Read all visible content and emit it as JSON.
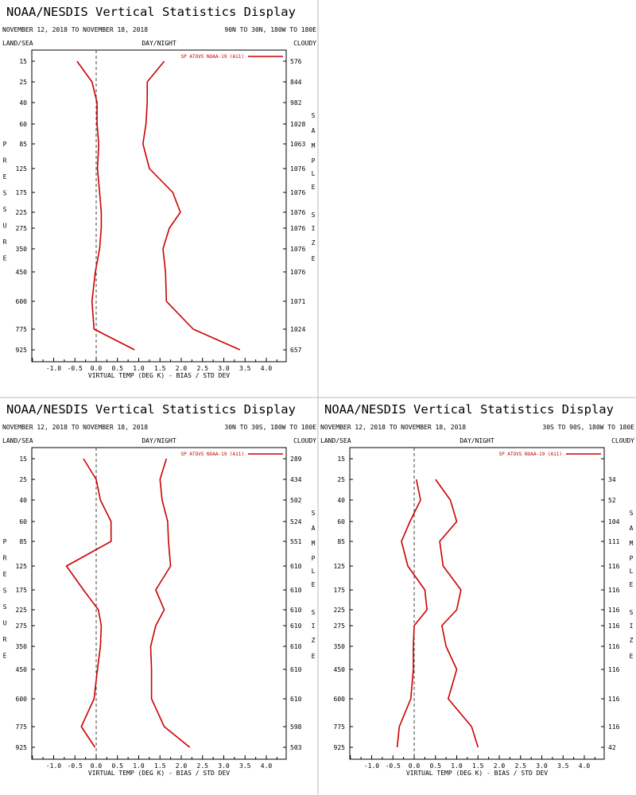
{
  "chart_data": [
    {
      "type": "line",
      "title": "NOAA/NESDIS Vertical Statistics Display",
      "date_range": "NOVEMBER 12, 2018 TO NOVEMBER 18, 2018",
      "region": "90N TO 30N, 180W TO 180E",
      "header_left": "LAND/SEA",
      "header_center": "DAY/NIGHT",
      "header_right": "CLOUDY",
      "xlabel": "VIRTUAL TEMP (DEG K) - BIAS / STD DEV",
      "ylabel": "PRESSURE",
      "right_label": "SAMPLE SIZE",
      "legend": "SP ATOVS NOAA-19 (A11)",
      "xlim": [
        -1.5,
        4.5
      ],
      "x_ticks": [
        "-1.0",
        "-0.5",
        "0.0",
        "0.5",
        "1.0",
        "1.5",
        "2.0",
        "2.5",
        "3.0",
        "3.5",
        "4.0"
      ],
      "pressure_levels": [
        "15",
        "25",
        "40",
        "60",
        "85",
        "125",
        "175",
        "225",
        "275",
        "350",
        "450",
        "600",
        "775",
        "925"
      ],
      "sample_size": [
        "576",
        "844",
        "982",
        "1028",
        "1063",
        "1076",
        "1076",
        "1076",
        "1076",
        "1076",
        "1076",
        "1071",
        "1024",
        "657"
      ],
      "series": [
        {
          "name": "bias",
          "values": [
            -0.45,
            -0.1,
            0.02,
            0.02,
            0.06,
            0.03,
            0.08,
            0.12,
            0.12,
            0.08,
            -0.02,
            -0.1,
            -0.05,
            0.9
          ]
        },
        {
          "name": "std_dev",
          "values": [
            1.6,
            1.2,
            1.2,
            1.17,
            1.1,
            1.25,
            1.8,
            1.98,
            1.72,
            1.57,
            1.63,
            1.65,
            2.28,
            3.38
          ]
        }
      ]
    },
    {
      "type": "line",
      "title": "NOAA/NESDIS Vertical Statistics Display",
      "date_range": "NOVEMBER 12, 2018 TO NOVEMBER 18, 2018",
      "region": "30N TO 30S, 180W TO 180E",
      "header_left": "LAND/SEA",
      "header_center": "DAY/NIGHT",
      "header_right": "CLOUDY",
      "xlabel": "VIRTUAL TEMP (DEG K) - BIAS / STD DEV",
      "ylabel": "PRESSURE",
      "right_label": "SAMPLE SIZE",
      "legend": "SP ATOVS NOAA-19 (A11)",
      "xlim": [
        -1.5,
        4.5
      ],
      "x_ticks": [
        "-1.0",
        "-0.5",
        "0.0",
        "0.5",
        "1.0",
        "1.5",
        "2.0",
        "2.5",
        "3.0",
        "3.5",
        "4.0"
      ],
      "pressure_levels": [
        "15",
        "25",
        "40",
        "60",
        "85",
        "125",
        "175",
        "225",
        "275",
        "350",
        "450",
        "600",
        "775",
        "925"
      ],
      "sample_size": [
        "289",
        "434",
        "502",
        "524",
        "551",
        "610",
        "610",
        "610",
        "610",
        "610",
        "610",
        "610",
        "598",
        "503"
      ],
      "series": [
        {
          "name": "bias",
          "values": [
            -0.3,
            0.0,
            0.1,
            0.35,
            0.35,
            -0.7,
            -0.3,
            0.05,
            0.12,
            0.1,
            0.03,
            -0.05,
            -0.35,
            -0.03
          ]
        },
        {
          "name": "std_dev",
          "values": [
            1.65,
            1.5,
            1.55,
            1.68,
            1.7,
            1.75,
            1.4,
            1.6,
            1.4,
            1.28,
            1.3,
            1.3,
            1.6,
            2.2
          ]
        }
      ]
    },
    {
      "type": "line",
      "title": "NOAA/NESDIS Vertical Statistics Display",
      "date_range": "NOVEMBER 12, 2018 TO NOVEMBER 18, 2018",
      "region": "30S TO 90S, 180W TO 180E",
      "header_left": "LAND/SEA",
      "header_center": "DAY/NIGHT",
      "header_right": "CLOUDY",
      "xlabel": "VIRTUAL TEMP (DEG K) - BIAS / STD DEV",
      "ylabel": "PRESSURE",
      "right_label": "SAMPLE SIZE",
      "legend": "SP ATOVS NOAA-19 (A11)",
      "xlim": [
        -1.5,
        4.5
      ],
      "x_ticks": [
        "-1.0",
        "-0.5",
        "0.0",
        "0.5",
        "1.0",
        "1.5",
        "2.0",
        "2.5",
        "3.0",
        "3.5",
        "4.0"
      ],
      "pressure_levels": [
        "15",
        "25",
        "40",
        "60",
        "85",
        "125",
        "175",
        "225",
        "275",
        "350",
        "450",
        "600",
        "775",
        "925"
      ],
      "sample_size": [
        "",
        "34",
        "52",
        "104",
        "111",
        "116",
        "116",
        "116",
        "116",
        "116",
        "116",
        "116",
        "116",
        "42"
      ],
      "series": [
        {
          "name": "bias",
          "values": [
            null,
            0.05,
            0.15,
            -0.1,
            -0.3,
            -0.15,
            0.25,
            0.3,
            0.0,
            -0.02,
            -0.02,
            -0.08,
            -0.35,
            -0.4
          ]
        },
        {
          "name": "std_dev",
          "values": [
            null,
            0.5,
            0.85,
            1.0,
            0.6,
            0.68,
            1.1,
            1.0,
            0.65,
            0.75,
            1.0,
            0.8,
            1.35,
            1.5
          ]
        }
      ]
    }
  ]
}
